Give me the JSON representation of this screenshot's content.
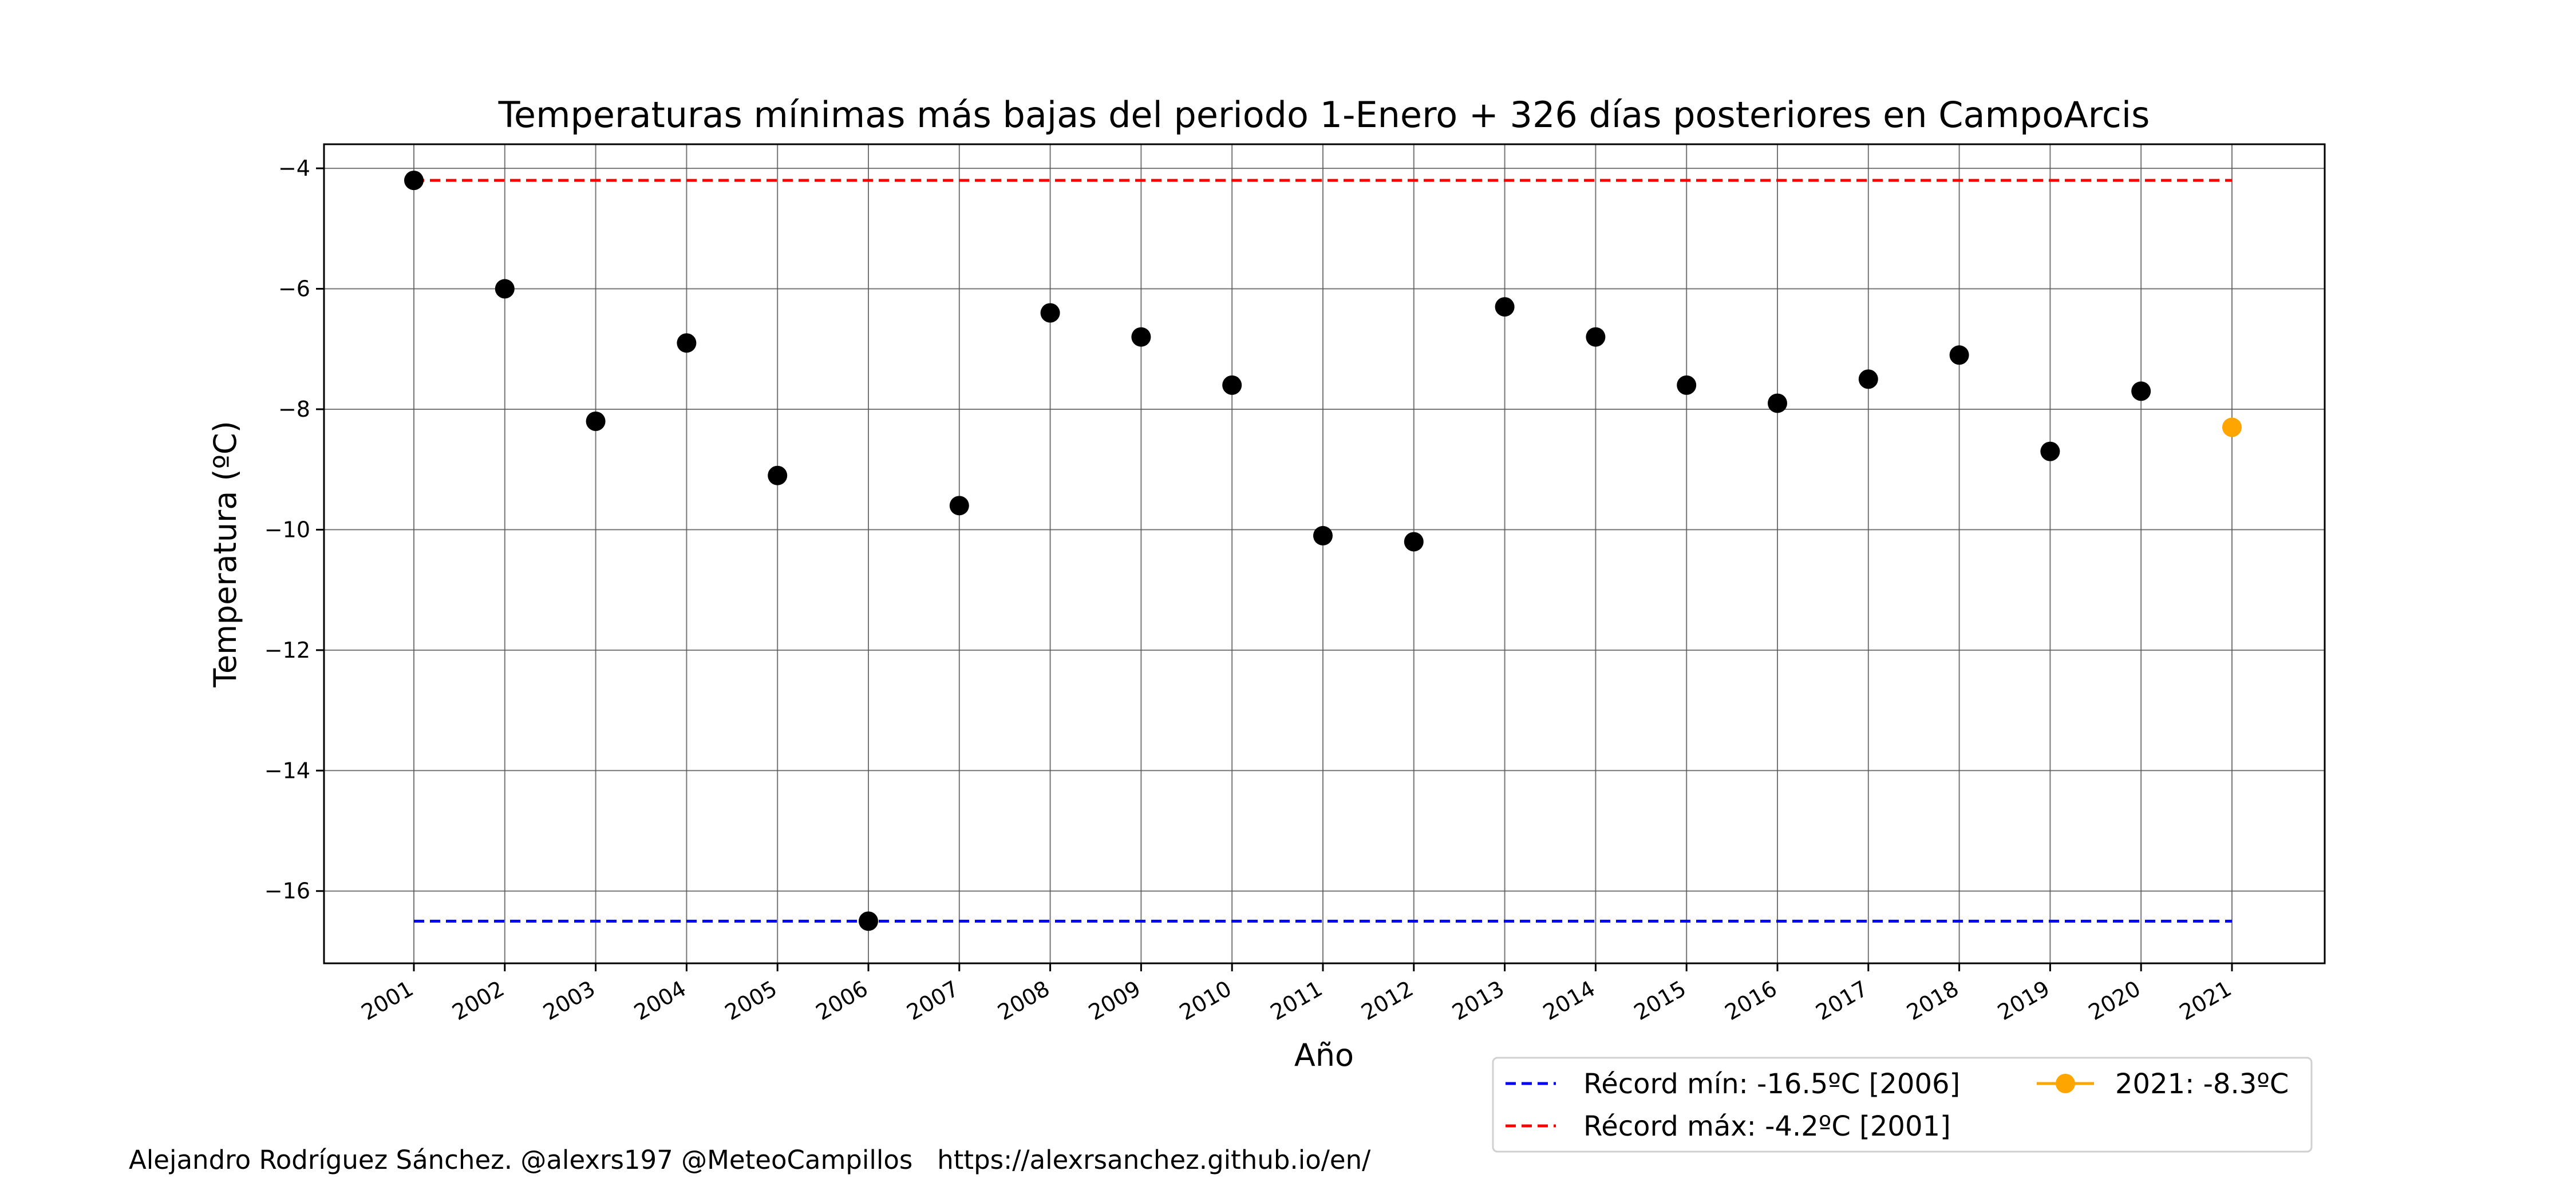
{
  "chart_data": {
    "type": "scatter",
    "title": "Temperaturas mínimas más bajas del periodo 1-Enero + 326 días posteriores en CampoArcis",
    "xlabel": "Año",
    "ylabel": "Temperatura (ºC)",
    "ylim": [
      -17.2,
      -3.6
    ],
    "yticks": [
      -4,
      -6,
      -8,
      -10,
      -12,
      -14,
      -16
    ],
    "grid": true,
    "legend_position": "bottom-right, below plot",
    "x": [
      "2001",
      "2002",
      "2003",
      "2004",
      "2005",
      "2006",
      "2007",
      "2008",
      "2009",
      "2010",
      "2011",
      "2012",
      "2013",
      "2014",
      "2015",
      "2016",
      "2017",
      "2018",
      "2019",
      "2020",
      "2021"
    ],
    "series": [
      {
        "color": "#000000",
        "values": [
          -4.2,
          -6.0,
          -8.2,
          -6.9,
          -9.1,
          -16.5,
          -9.6,
          -6.4,
          -6.8,
          -7.6,
          -10.1,
          -10.2,
          -6.3,
          -6.8,
          -7.6,
          -7.9,
          -7.5,
          -7.1,
          -8.7,
          -7.7,
          null
        ]
      },
      {
        "name": "2021: -8.3ºC",
        "color": "#ffa500",
        "values": [
          null,
          null,
          null,
          null,
          null,
          null,
          null,
          null,
          null,
          null,
          null,
          null,
          null,
          null,
          null,
          null,
          null,
          null,
          null,
          null,
          -8.3
        ]
      }
    ],
    "reference_lines": [
      {
        "name": "Récord mín: -16.5ºC [2006]",
        "value": -16.5,
        "color": "#0000ff",
        "style": "dashed"
      },
      {
        "name": "Récord máx: -4.2ºC [2001]",
        "value": -4.2,
        "color": "#ff0000",
        "style": "dashed"
      }
    ]
  },
  "footer": {
    "credit": "Alejandro Rodríguez Sánchez. @alexrs197 @MeteoCampillos   https://alexrsanchez.github.io/en/"
  }
}
